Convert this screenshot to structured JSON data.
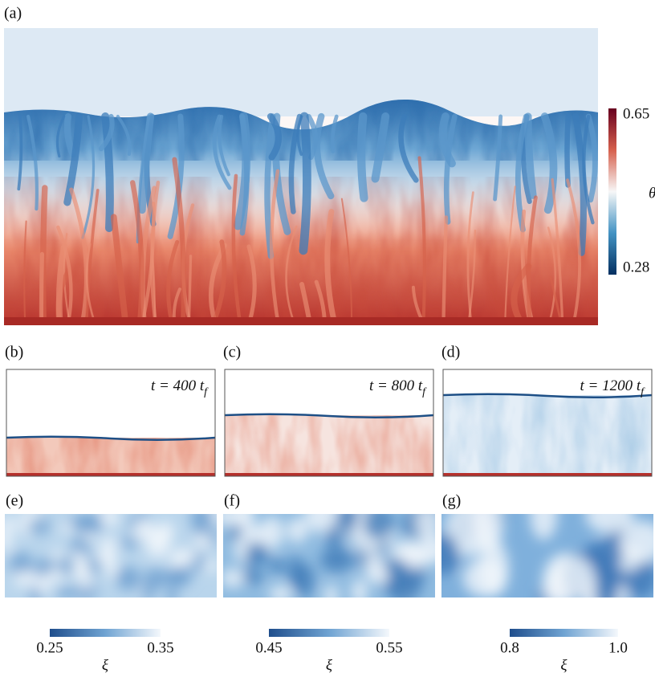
{
  "panels": {
    "a": {
      "label": "(a)",
      "colorbar": {
        "max": "0.65",
        "min": "0.28",
        "symbol": "θ"
      }
    },
    "b": {
      "label": "(b)",
      "time": {
        "text": "t = 400 t",
        "subscript": "f"
      }
    },
    "c": {
      "label": "(c)",
      "time": {
        "text": "t = 800 t",
        "subscript": "f"
      }
    },
    "d": {
      "label": "(d)",
      "time": {
        "text": "t = 1200 t",
        "subscript": "f"
      }
    },
    "e": {
      "label": "(e)",
      "colorbar": {
        "min": "0.25",
        "max": "0.35",
        "symbol": "ξ"
      }
    },
    "f": {
      "label": "(f)",
      "colorbar": {
        "min": "0.45",
        "max": "0.55",
        "symbol": "ξ"
      }
    },
    "g": {
      "label": "(g)",
      "colorbar": {
        "min": "0.8",
        "max": "1.0",
        "symbol": "ξ"
      }
    }
  }
}
